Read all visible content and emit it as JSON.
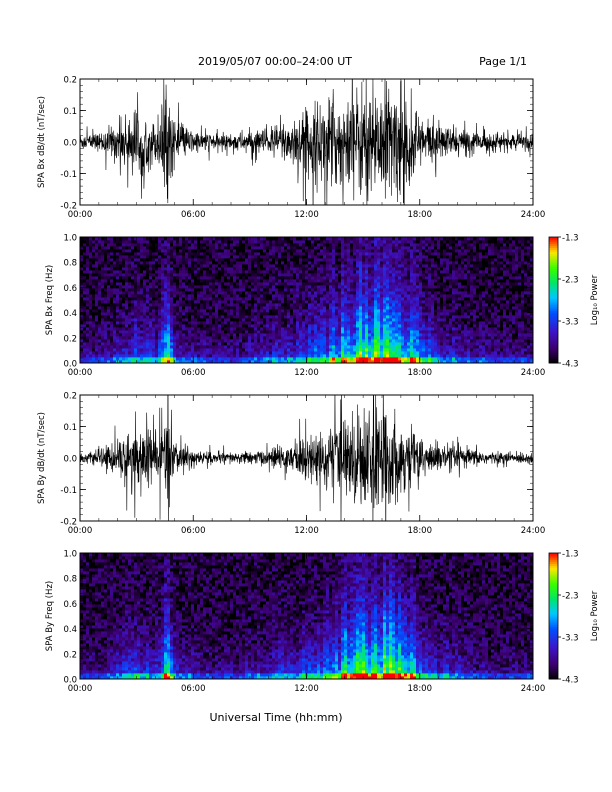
{
  "header": {
    "title": "2019/05/07  00:00–24:00 UT",
    "page_label": "Page 1/1"
  },
  "xaxis": {
    "label": "Universal Time (hh:mm)",
    "ticks": [
      "00:00",
      "06:00",
      "12:00",
      "18:00",
      "24:00"
    ],
    "range_hours": [
      0,
      24
    ]
  },
  "chart_data": [
    {
      "type": "line",
      "ylabel": "SPA Bx dB/dt (nT/sec)",
      "ylim": [
        -0.2,
        0.2
      ],
      "yticks": [
        "-0.2",
        "-0.1",
        "0.0",
        "0.1",
        "0.2"
      ],
      "ytick_values": [
        -0.2,
        -0.1,
        0.0,
        0.1,
        0.2
      ],
      "x_hours": [
        0,
        1,
        2,
        3,
        4,
        4.7,
        5,
        6,
        7,
        8,
        9,
        10,
        11,
        12,
        13,
        14,
        15,
        16,
        17,
        18,
        19,
        20,
        21,
        22,
        23,
        24
      ],
      "envelope": [
        0.03,
        0.03,
        0.07,
        0.12,
        0.07,
        0.2,
        0.07,
        0.04,
        0.03,
        0.03,
        0.04,
        0.05,
        0.08,
        0.12,
        0.15,
        0.17,
        0.2,
        0.2,
        0.2,
        0.1,
        0.06,
        0.05,
        0.04,
        0.03,
        0.03,
        0.03
      ],
      "color": "#000000"
    },
    {
      "type": "heatmap",
      "ylabel": "SPA Bx Freq (Hz)",
      "ylim": [
        0,
        1
      ],
      "yticks": [
        "0.0",
        "0.2",
        "0.4",
        "0.6",
        "0.8",
        "1.0"
      ],
      "ytick_values": [
        0,
        0.2,
        0.4,
        0.6,
        0.8,
        1.0
      ],
      "colorbar": {
        "label": "Log₁₀ Power",
        "range": [
          -4.3,
          -1.3
        ],
        "ticks": [
          "-1.3",
          "-2.3",
          "-3.3",
          "-4.3"
        ],
        "tick_values": [
          -1.3,
          -2.3,
          -3.3,
          -4.3
        ]
      },
      "x_hours": [
        0,
        1,
        2,
        3,
        4,
        4.7,
        5,
        6,
        7,
        8,
        9,
        10,
        11,
        12,
        13,
        14,
        15,
        16,
        17,
        18,
        19,
        20,
        21,
        22,
        23,
        24
      ],
      "activity": [
        0.15,
        0.15,
        0.25,
        0.35,
        0.3,
        0.65,
        0.3,
        0.2,
        0.15,
        0.15,
        0.2,
        0.25,
        0.3,
        0.35,
        0.45,
        0.6,
        0.75,
        0.8,
        0.7,
        0.45,
        0.3,
        0.25,
        0.2,
        0.15,
        0.15,
        0.15
      ],
      "peak_log_power_near_0hz": -1.3,
      "background_log_power": -4.1
    },
    {
      "type": "line",
      "ylabel": "SPA By dB/dt (nT/sec)",
      "ylim": [
        -0.2,
        0.2
      ],
      "yticks": [
        "-0.2",
        "-0.1",
        "0.0",
        "0.1",
        "0.2"
      ],
      "ytick_values": [
        -0.2,
        -0.1,
        0.0,
        0.1,
        0.2
      ],
      "x_hours": [
        0,
        1,
        2,
        3,
        4,
        4.7,
        5,
        6,
        7,
        8,
        9,
        10,
        11,
        12,
        13,
        14,
        15,
        16,
        17,
        18,
        19,
        20,
        21,
        22,
        23,
        24
      ],
      "envelope": [
        0.02,
        0.02,
        0.07,
        0.12,
        0.09,
        0.2,
        0.06,
        0.03,
        0.02,
        0.02,
        0.02,
        0.03,
        0.05,
        0.08,
        0.1,
        0.14,
        0.18,
        0.2,
        0.12,
        0.08,
        0.05,
        0.04,
        0.03,
        0.02,
        0.02,
        0.02
      ],
      "color": "#000000"
    },
    {
      "type": "heatmap",
      "ylabel": "SPA By Freq (Hz)",
      "ylim": [
        0,
        1
      ],
      "yticks": [
        "0.0",
        "0.2",
        "0.4",
        "0.6",
        "0.8",
        "1.0"
      ],
      "ytick_values": [
        0,
        0.2,
        0.4,
        0.6,
        0.8,
        1.0
      ],
      "colorbar": {
        "label": "Log₁₀ Power",
        "range": [
          -4.3,
          -1.3
        ],
        "ticks": [
          "-1.3",
          "-2.3",
          "-3.3",
          "-4.3"
        ],
        "tick_values": [
          -1.3,
          -2.3,
          -3.3,
          -4.3
        ]
      },
      "x_hours": [
        0,
        1,
        2,
        3,
        4,
        4.7,
        5,
        6,
        7,
        8,
        9,
        10,
        11,
        12,
        13,
        14,
        15,
        16,
        17,
        18,
        19,
        20,
        21,
        22,
        23,
        24
      ],
      "activity": [
        0.15,
        0.15,
        0.25,
        0.35,
        0.3,
        0.65,
        0.3,
        0.2,
        0.15,
        0.15,
        0.2,
        0.25,
        0.3,
        0.35,
        0.45,
        0.6,
        0.75,
        0.8,
        0.7,
        0.45,
        0.3,
        0.25,
        0.2,
        0.15,
        0.15,
        0.15
      ],
      "peak_log_power_near_0hz": -1.3,
      "background_log_power": -4.1
    }
  ]
}
